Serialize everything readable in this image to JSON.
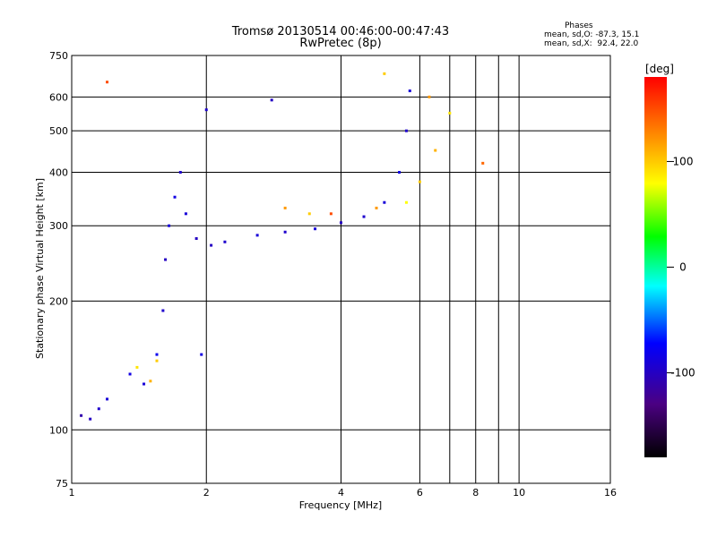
{
  "chart_data": {
    "type": "scatter",
    "title": "Tromsø 20130514 00:46:00-00:47:43",
    "subtitle": "RwPretec (8p)",
    "xlabel": "Frequency [MHz]",
    "ylabel": "Stationary phase Virtual Height [km]",
    "x_scale": "log",
    "y_scale": "log",
    "xlim": [
      1,
      16
    ],
    "ylim": [
      75,
      750
    ],
    "x_ticks": [
      1,
      2,
      4,
      6,
      8,
      10,
      16
    ],
    "x_grid": [
      2,
      4,
      6,
      7,
      8,
      9,
      10
    ],
    "y_ticks": [
      75,
      100,
      200,
      300,
      400,
      500,
      600,
      750
    ],
    "y_grid": [
      100,
      200,
      300,
      400,
      500,
      600
    ],
    "grid": true,
    "colorbar": {
      "label": "[deg]",
      "range": [
        -180,
        180
      ],
      "ticks": [
        100,
        0,
        -100
      ]
    },
    "phases": {
      "header": "Phases",
      "o_line": "mean, sd,O: -87.3, 15.1",
      "x_line": "mean, sd,X:  92.4, 22.0"
    },
    "series": [
      {
        "name": "O",
        "points": [
          {
            "x": 1.05,
            "y": 108,
            "phase": -110
          },
          {
            "x": 1.1,
            "y": 106,
            "phase": -100
          },
          {
            "x": 1.15,
            "y": 112,
            "phase": -95
          },
          {
            "x": 1.2,
            "y": 118,
            "phase": -90
          },
          {
            "x": 1.35,
            "y": 135,
            "phase": -85
          },
          {
            "x": 1.45,
            "y": 128,
            "phase": -90
          },
          {
            "x": 1.55,
            "y": 150,
            "phase": -80
          },
          {
            "x": 1.6,
            "y": 190,
            "phase": -95
          },
          {
            "x": 1.62,
            "y": 250,
            "phase": -100
          },
          {
            "x": 1.65,
            "y": 300,
            "phase": -90
          },
          {
            "x": 1.7,
            "y": 350,
            "phase": -85
          },
          {
            "x": 1.75,
            "y": 400,
            "phase": -95
          },
          {
            "x": 1.8,
            "y": 320,
            "phase": -90
          },
          {
            "x": 1.9,
            "y": 280,
            "phase": -100
          },
          {
            "x": 1.95,
            "y": 150,
            "phase": -85
          },
          {
            "x": 2.0,
            "y": 560,
            "phase": -95
          },
          {
            "x": 2.05,
            "y": 270,
            "phase": -100
          },
          {
            "x": 2.2,
            "y": 275,
            "phase": -95
          },
          {
            "x": 2.6,
            "y": 285,
            "phase": -90
          },
          {
            "x": 2.8,
            "y": 590,
            "phase": -100
          },
          {
            "x": 3.0,
            "y": 290,
            "phase": -95
          },
          {
            "x": 3.5,
            "y": 295,
            "phase": -90
          },
          {
            "x": 4.0,
            "y": 305,
            "phase": -100
          },
          {
            "x": 4.5,
            "y": 315,
            "phase": -95
          },
          {
            "x": 5.0,
            "y": 340,
            "phase": -90
          },
          {
            "x": 5.4,
            "y": 400,
            "phase": -85
          },
          {
            "x": 5.6,
            "y": 500,
            "phase": -95
          },
          {
            "x": 5.7,
            "y": 620,
            "phase": -90
          }
        ]
      },
      {
        "name": "X",
        "points": [
          {
            "x": 1.2,
            "y": 650,
            "phase": 150
          },
          {
            "x": 1.4,
            "y": 140,
            "phase": 90
          },
          {
            "x": 1.5,
            "y": 130,
            "phase": 110
          },
          {
            "x": 1.55,
            "y": 145,
            "phase": 100
          },
          {
            "x": 3.0,
            "y": 330,
            "phase": 120
          },
          {
            "x": 3.4,
            "y": 320,
            "phase": 100
          },
          {
            "x": 3.8,
            "y": 320,
            "phase": 150
          },
          {
            "x": 4.8,
            "y": 330,
            "phase": 120
          },
          {
            "x": 5.0,
            "y": 680,
            "phase": 100
          },
          {
            "x": 5.6,
            "y": 340,
            "phase": 80
          },
          {
            "x": 6.0,
            "y": 380,
            "phase": 100
          },
          {
            "x": 6.3,
            "y": 600,
            "phase": 120
          },
          {
            "x": 6.5,
            "y": 450,
            "phase": 110
          },
          {
            "x": 7.0,
            "y": 550,
            "phase": 90
          },
          {
            "x": 8.3,
            "y": 420,
            "phase": 140
          }
        ]
      }
    ]
  }
}
